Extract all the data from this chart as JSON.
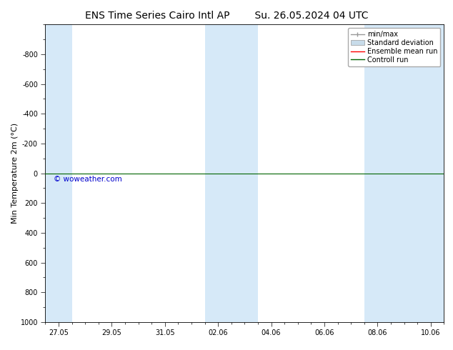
{
  "title_left": "ENS Time Series Cairo Intl AP",
  "title_right": "Su. 26.05.2024 04 UTC",
  "ylabel": "Min Temperature 2m (°C)",
  "xlabel": "",
  "background_color": "#ffffff",
  "plot_bg_color": "#ffffff",
  "ylim_bottom": 1000,
  "ylim_top": -1000,
  "yticks": [
    -800,
    -600,
    -400,
    -200,
    0,
    200,
    400,
    600,
    800,
    1000
  ],
  "xtick_labels": [
    "27.05",
    "29.05",
    "31.05",
    "02.06",
    "04.06",
    "06.06",
    "08.06",
    "10.06"
  ],
  "xtick_positions": [
    0,
    2,
    4,
    6,
    8,
    10,
    12,
    14
  ],
  "xlim": [
    -0.5,
    14.5
  ],
  "watermark": "© woweather.com",
  "watermark_color": "#0000cc",
  "shaded_regions": [
    {
      "xstart": -0.5,
      "xend": 0.5,
      "color": "#d6e9f8"
    },
    {
      "xstart": 5.5,
      "xend": 7.5,
      "color": "#d6e9f8"
    },
    {
      "xstart": 11.5,
      "xend": 14.5,
      "color": "#d6e9f8"
    }
  ],
  "horizontal_line_y": 0,
  "horizontal_line_color": "#006400",
  "ensemble_mean_color": "#ff0000",
  "std_dev_color": "#c8dcea",
  "min_max_color": "#999999",
  "legend_entries": [
    "min/max",
    "Standard deviation",
    "Ensemble mean run",
    "Controll run"
  ],
  "legend_colors": [
    "#999999",
    "#c8dcea",
    "#ff0000",
    "#006400"
  ],
  "title_fontsize": 10,
  "tick_fontsize": 7,
  "ylabel_fontsize": 8,
  "legend_fontsize": 7
}
